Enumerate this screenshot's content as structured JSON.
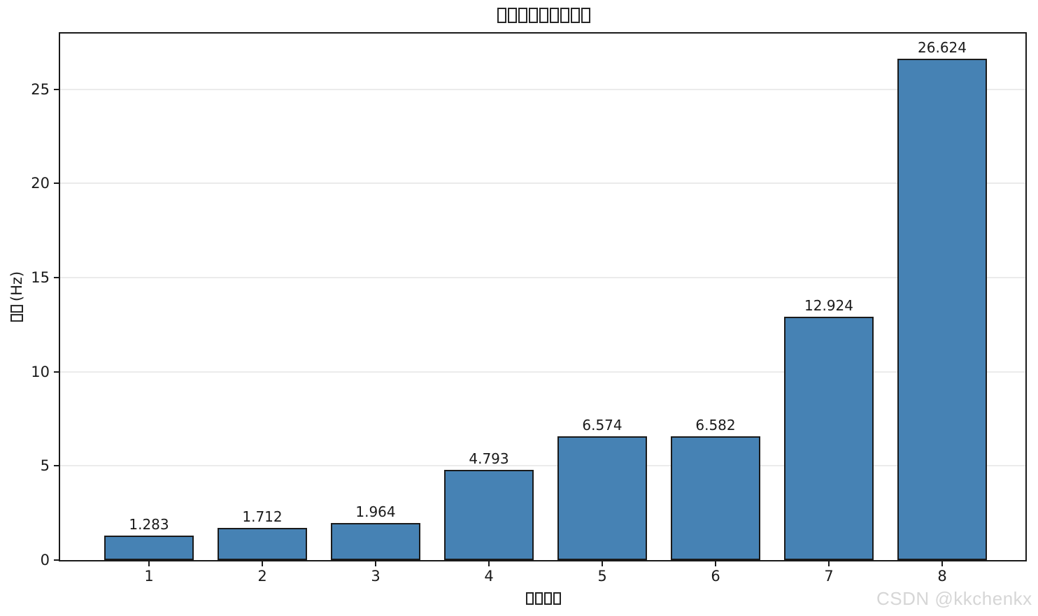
{
  "figure": {
    "background": "#ffffff"
  },
  "title": {
    "text": "□□□□□□□□□",
    "missing_glyph_count": 9
  },
  "axes": {
    "xlabel": {
      "text": "□□□□",
      "missing_glyph_count": 4
    },
    "ylabel": {
      "text": "□□ (Hz)",
      "missing_glyph_count": 2,
      "unit_text": "(Hz)"
    },
    "ytick_labels": [
      "0",
      "5",
      "10",
      "15",
      "20",
      "25"
    ],
    "xtick_labels": [
      "1",
      "2",
      "3",
      "4",
      "5",
      "6",
      "7",
      "8"
    ]
  },
  "chart_data": {
    "type": "bar",
    "categories": [
      "1",
      "2",
      "3",
      "4",
      "5",
      "6",
      "7",
      "8"
    ],
    "values": [
      1.283,
      1.712,
      1.964,
      4.793,
      6.574,
      6.582,
      12.924,
      26.624
    ],
    "value_labels": [
      "1.283",
      "1.712",
      "1.964",
      "4.793",
      "6.574",
      "6.582",
      "12.924",
      "26.624"
    ],
    "title": "□□□□□□□□□",
    "xlabel": "□□□□",
    "ylabel": "□□ (Hz)",
    "yticks": [
      0,
      5,
      10,
      15,
      20,
      25
    ],
    "ylim": [
      0,
      27.955
    ],
    "grid": "horizontal",
    "legend": "none",
    "bar_color": "#4682b4",
    "bar_edge_color": "#1a1a1a",
    "grid_color": "#ebebeb",
    "text_color": "#1a1a1a"
  },
  "watermark": {
    "text": "CSDN @kkchenkx",
    "color": "#d6d6d6"
  }
}
